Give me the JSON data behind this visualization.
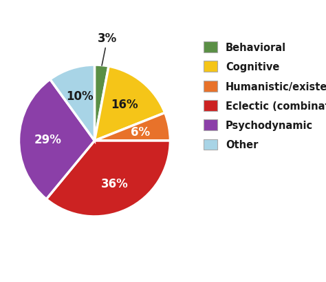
{
  "labels": [
    "Behavioral",
    "Cognitive",
    "Humanistic/existential",
    "Eclectic (combination)",
    "Psychodynamic",
    "Other"
  ],
  "values": [
    3,
    16,
    6,
    36,
    29,
    10
  ],
  "colors": [
    "#5a8f45",
    "#f5c518",
    "#e8722a",
    "#cc2222",
    "#8b3fa8",
    "#a8d4e6"
  ],
  "pct_labels": [
    "3%",
    "16%",
    "6%",
    "36%",
    "29%",
    "10%"
  ],
  "pct_colors": [
    "#1a1a1a",
    "#1a1a1a",
    "#ffffff",
    "#ffffff",
    "#ffffff",
    "#1a1a1a"
  ],
  "startangle": 90,
  "background_color": "#ffffff",
  "text_color": "#1a1a1a",
  "label_fontsize": 12,
  "legend_fontsize": 10.5,
  "wedge_edge_color": "#ffffff",
  "wedge_linewidth": 2.5
}
